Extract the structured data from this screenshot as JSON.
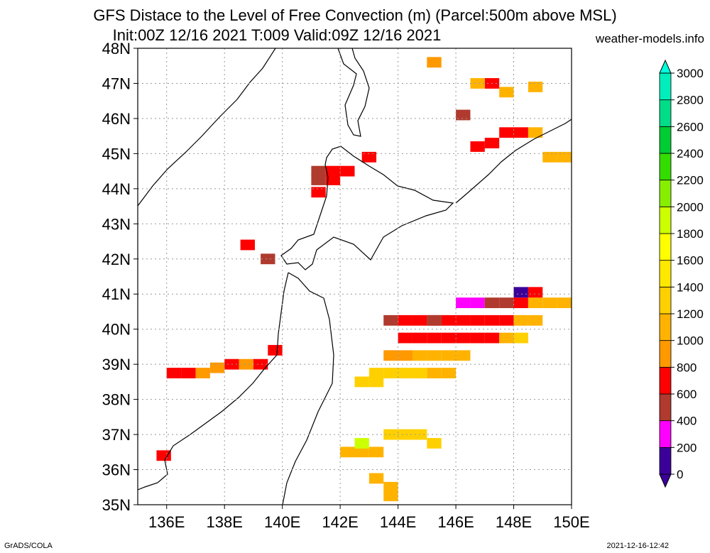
{
  "header": {
    "title": "GFS Distace to the Level of Free Convection (m) (Parcel:500m above MSL)",
    "subtitle": "Init:00Z 12/16 2021 T:009 Valid:09Z 12/16 2021",
    "site": "weather-models.info"
  },
  "footer": {
    "left": "GrADS/COLA",
    "right": "2021-12-16-12:42"
  },
  "chart_data": {
    "type": "heatmap",
    "title": "GFS Distace to the Level of Free Convection (m) (Parcel:500m above MSL)",
    "xlabel": "",
    "ylabel": "",
    "xlim": [
      135,
      150
    ],
    "ylim": [
      35,
      48
    ],
    "x_ticks": [
      "136E",
      "138E",
      "140E",
      "142E",
      "144E",
      "146E",
      "148E",
      "150E"
    ],
    "y_ticks": [
      "35N",
      "36N",
      "37N",
      "38N",
      "39N",
      "40N",
      "41N",
      "42N",
      "43N",
      "44N",
      "45N",
      "46N",
      "47N",
      "48N"
    ],
    "grid": true,
    "legend": "right colorbar",
    "colorbar": {
      "levels": [
        0,
        200,
        400,
        600,
        800,
        1000,
        1200,
        1400,
        1600,
        1800,
        2000,
        2200,
        2400,
        2600,
        2800,
        3000
      ],
      "labels": [
        "0",
        "200",
        "400",
        "600",
        "800",
        "1000",
        "1200",
        "1400",
        "1600",
        "1800",
        "2000",
        "2200",
        "2400",
        "2600",
        "2800",
        "3000"
      ],
      "colors": [
        "#3b0099",
        "#ff00ff",
        "#b03a2e",
        "#ff0000",
        "#ff9900",
        "#ffb300",
        "#ffd000",
        "#ffe800",
        "#ffff00",
        "#ccff00",
        "#88ee00",
        "#33dd00",
        "#00cc33",
        "#00dd88",
        "#00eebb",
        "#00ffdd"
      ]
    },
    "cells": [
      [
        144.75,
        40.25,
        "#ff0000"
      ],
      [
        145.25,
        40.25,
        "#ff0000"
      ],
      [
        145.75,
        40.25,
        "#ff0000"
      ],
      [
        146.25,
        40.25,
        "#ff0000"
      ],
      [
        144.25,
        40.25,
        "#ff0000"
      ],
      [
        143.75,
        40.25,
        "#b03a2e"
      ],
      [
        144.25,
        39.75,
        "#ff0000"
      ],
      [
        144.75,
        39.75,
        "#ff0000"
      ],
      [
        145.25,
        39.75,
        "#ff0000"
      ],
      [
        145.75,
        39.75,
        "#ff0000"
      ],
      [
        146.25,
        39.75,
        "#ff0000"
      ],
      [
        146.75,
        39.75,
        "#ff0000"
      ],
      [
        145.25,
        40.25,
        "#b03a2e"
      ],
      [
        146.75,
        40.25,
        "#ff0000"
      ],
      [
        147.25,
        40.25,
        "#ff0000"
      ],
      [
        147.75,
        40.25,
        "#ff0000"
      ],
      [
        148.25,
        40.25,
        "#ffb300"
      ],
      [
        148.75,
        40.25,
        "#ffb300"
      ],
      [
        147.75,
        40.75,
        "#b03a2e"
      ],
      [
        148.25,
        40.75,
        "#ff0000"
      ],
      [
        148.75,
        40.75,
        "#ffb300"
      ],
      [
        149.25,
        40.75,
        "#ffb300"
      ],
      [
        149.75,
        40.75,
        "#ffb300"
      ],
      [
        146.25,
        40.75,
        "#ff00ff"
      ],
      [
        146.75,
        40.75,
        "#ff00ff"
      ],
      [
        147.25,
        40.75,
        "#b03a2e"
      ],
      [
        148.25,
        41.05,
        "#3b0099"
      ],
      [
        148.75,
        41.05,
        "#ff0000"
      ],
      [
        147.25,
        39.75,
        "#ff0000"
      ],
      [
        147.75,
        39.75,
        "#ffb300"
      ],
      [
        148.25,
        39.75,
        "#ffd000"
      ],
      [
        143.75,
        39.25,
        "#ff9900"
      ],
      [
        144.25,
        39.25,
        "#ff9900"
      ],
      [
        144.75,
        39.25,
        "#ffb300"
      ],
      [
        145.25,
        39.25,
        "#ffb300"
      ],
      [
        145.75,
        39.25,
        "#ffb300"
      ],
      [
        146.25,
        39.25,
        "#ffb300"
      ],
      [
        143.25,
        38.75,
        "#ffd000"
      ],
      [
        143.75,
        38.75,
        "#ffd000"
      ],
      [
        144.25,
        38.75,
        "#ffd000"
      ],
      [
        144.75,
        38.75,
        "#ffd000"
      ],
      [
        145.25,
        38.75,
        "#ffb300"
      ],
      [
        145.75,
        38.75,
        "#ffb300"
      ],
      [
        142.75,
        38.5,
        "#ffd000"
      ],
      [
        143.25,
        38.5,
        "#ffd000"
      ],
      [
        144.25,
        37.0,
        "#ffd000"
      ],
      [
        144.75,
        37.0,
        "#ffd000"
      ],
      [
        143.75,
        37.0,
        "#ffd000"
      ],
      [
        145.25,
        36.75,
        "#ffd000"
      ],
      [
        142.25,
        36.5,
        "#ffb300"
      ],
      [
        142.75,
        36.5,
        "#ffb300"
      ],
      [
        143.25,
        36.5,
        "#ffb300"
      ],
      [
        142.75,
        36.75,
        "#ccff00"
      ],
      [
        143.25,
        35.75,
        "#ffb300"
      ],
      [
        143.75,
        35.5,
        "#ffb300"
      ],
      [
        143.75,
        35.25,
        "#ffb300"
      ],
      [
        141.25,
        44.5,
        "#b03a2e"
      ],
      [
        141.75,
        44.5,
        "#ff0000"
      ],
      [
        141.75,
        44.25,
        "#ff0000"
      ],
      [
        141.25,
        44.25,
        "#b03a2e"
      ],
      [
        142.25,
        44.5,
        "#ff0000"
      ],
      [
        141.25,
        43.9,
        "#ff0000"
      ],
      [
        139.5,
        42.0,
        "#b03a2e"
      ],
      [
        138.8,
        42.4,
        "#ff0000"
      ],
      [
        136.25,
        38.75,
        "#ff0000"
      ],
      [
        136.75,
        38.75,
        "#ff0000"
      ],
      [
        137.25,
        38.75,
        "#ff9900"
      ],
      [
        137.75,
        38.9,
        "#ff9900"
      ],
      [
        138.25,
        39.0,
        "#ff0000"
      ],
      [
        138.75,
        39.0,
        "#ff9900"
      ],
      [
        139.25,
        39.0,
        "#ff0000"
      ],
      [
        139.75,
        39.4,
        "#ff0000"
      ],
      [
        135.9,
        36.4,
        "#ff0000"
      ],
      [
        143.0,
        44.9,
        "#ff0000"
      ],
      [
        147.25,
        47.0,
        "#ff0000"
      ],
      [
        147.75,
        46.75,
        "#ffb300"
      ],
      [
        146.75,
        47.0,
        "#ffb300"
      ],
      [
        148.75,
        46.9,
        "#ffb300"
      ],
      [
        146.25,
        46.1,
        "#b03a2e"
      ],
      [
        147.75,
        45.6,
        "#ff0000"
      ],
      [
        148.25,
        45.6,
        "#ff0000"
      ],
      [
        148.75,
        45.6,
        "#ffb300"
      ],
      [
        147.25,
        45.3,
        "#ff0000"
      ],
      [
        146.75,
        45.2,
        "#ff0000"
      ],
      [
        149.25,
        44.9,
        "#ffb300"
      ],
      [
        149.75,
        44.9,
        "#ffb300"
      ],
      [
        145.25,
        47.6,
        "#ff9900"
      ]
    ]
  }
}
